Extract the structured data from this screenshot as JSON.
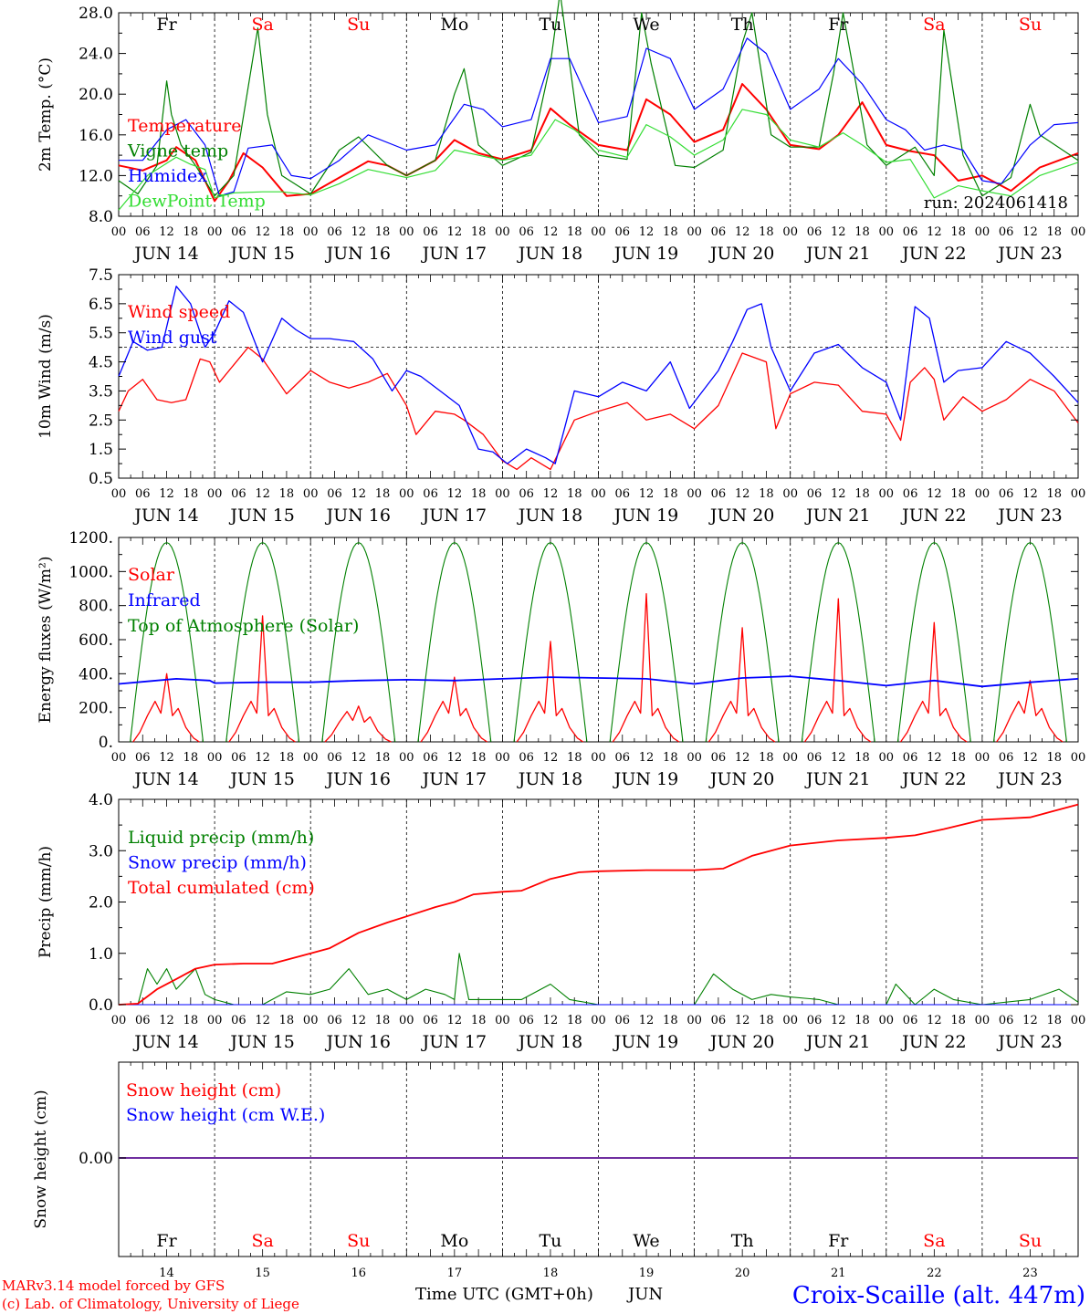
{
  "footer": {
    "model": "MARv3.14 model forced by GFS",
    "copyright": "(c) Lab. of Climatology, University of Liege",
    "station": "Croix-Scaille (alt. 447m)",
    "time_label": "Time UTC (GMT+0h)",
    "month": "JUN"
  },
  "colors": {
    "red": "#ff0000",
    "green": "#008000",
    "blue": "#0000ff",
    "lime": "#33dd33",
    "purple": "#7030a0"
  },
  "chart_data": [
    {
      "type": "line",
      "ylabel": "2m Temp. (°C)",
      "ylim": [
        8,
        28
      ],
      "yticks": [
        "8.0",
        "12.0",
        "16.0",
        "20.0",
        "24.0",
        "28.0"
      ],
      "ytick_values": [
        8,
        12,
        16,
        20,
        24,
        28
      ],
      "run_label": "run: 2024061418",
      "days": [
        "JUN 14",
        "JUN 15",
        "JUN 16",
        "JUN 17",
        "JUN 18",
        "JUN 19",
        "JUN 20",
        "JUN 21",
        "JUN 22",
        "JUN 23"
      ],
      "weekdays": [
        "Fr",
        "Sa",
        "Su",
        "Mo",
        "Tu",
        "We",
        "Th",
        "Fr",
        "Sa",
        "Su"
      ],
      "weekend": [
        false,
        true,
        true,
        false,
        false,
        false,
        false,
        false,
        true,
        true
      ],
      "hour_ticks": [
        "00",
        "06",
        "12",
        "18"
      ],
      "series": [
        {
          "name": "Temperature",
          "color": "#ff0000",
          "x": [
            0,
            0.25,
            0.5,
            0.6,
            0.8,
            1.0,
            1.15,
            1.3,
            1.5,
            1.75,
            2.0,
            2.3,
            2.6,
            2.8,
            3.0,
            3.3,
            3.5,
            3.75,
            4.0,
            4.3,
            4.5,
            4.7,
            5.0,
            5.3,
            5.5,
            5.75,
            6.0,
            6.3,
            6.5,
            6.75,
            7.0,
            7.3,
            7.5,
            7.75,
            8.0,
            8.25,
            8.5,
            8.75,
            9.0,
            9.3,
            9.6,
            10.0
          ],
          "y": [
            13,
            12.5,
            13.5,
            14.8,
            13.5,
            9.5,
            11.5,
            14.2,
            12.8,
            10,
            10.2,
            11.8,
            13.4,
            13,
            12,
            13.5,
            15.5,
            14.2,
            13.6,
            14.5,
            18.6,
            17,
            15,
            14.5,
            19.5,
            18,
            15.3,
            16.5,
            21,
            18.5,
            15,
            14.6,
            16,
            19.2,
            15,
            14.4,
            14,
            11.5,
            12,
            10.5,
            12.8,
            14.2
          ]
        },
        {
          "name": "Vigne temp",
          "color": "#008000",
          "x": [
            0,
            0.2,
            0.4,
            0.5,
            0.55,
            0.65,
            0.8,
            1.0,
            1.2,
            1.45,
            1.55,
            1.7,
            2.0,
            2.3,
            2.5,
            2.8,
            3.0,
            3.3,
            3.5,
            3.6,
            3.75,
            4.0,
            4.3,
            4.5,
            4.6,
            4.8,
            5.0,
            5.3,
            5.45,
            5.55,
            5.8,
            6.0,
            6.3,
            6.5,
            6.6,
            6.8,
            7.0,
            7.3,
            7.45,
            7.55,
            7.8,
            8.0,
            8.3,
            8.5,
            8.6,
            8.8,
            9.0,
            9.3,
            9.5,
            9.6,
            10.0
          ],
          "y": [
            11.5,
            10.2,
            13,
            21.3,
            18,
            15,
            13,
            10,
            12,
            26.5,
            18,
            12,
            10.2,
            14.5,
            15.8,
            13,
            12,
            13.5,
            20,
            22.5,
            15,
            13,
            14.3,
            23,
            30,
            16,
            14,
            13.6,
            28,
            23,
            13,
            12.8,
            14.5,
            25,
            28,
            16,
            14.8,
            14.8,
            22,
            28,
            15,
            13,
            14.8,
            12,
            26.3,
            14,
            10,
            11.8,
            19,
            16,
            13.5
          ]
        },
        {
          "name": "Humidex",
          "color": "#0000ff",
          "x": [
            0,
            0.25,
            0.5,
            0.7,
            0.9,
            1.05,
            1.2,
            1.35,
            1.6,
            1.8,
            2.0,
            2.3,
            2.6,
            3.0,
            3.3,
            3.6,
            3.8,
            4.0,
            4.3,
            4.5,
            4.7,
            5.0,
            5.3,
            5.5,
            5.75,
            6.0,
            6.3,
            6.55,
            6.75,
            7.0,
            7.3,
            7.5,
            7.75,
            8.0,
            8.2,
            8.4,
            8.6,
            8.8,
            9.0,
            9.2,
            9.5,
            9.75,
            10.0
          ],
          "y": [
            13.5,
            13.5,
            16.5,
            17.5,
            15,
            10,
            10.4,
            14.7,
            15,
            12,
            11.7,
            13.5,
            16,
            14.5,
            15,
            19,
            18.5,
            16.8,
            17.5,
            23.5,
            23.5,
            17.2,
            17.8,
            24.5,
            23.5,
            18.5,
            20.5,
            25.5,
            24,
            18.5,
            20.5,
            23.5,
            21,
            17.5,
            16.5,
            14.5,
            15,
            14.5,
            11.5,
            11.2,
            15,
            17,
            17.2
          ]
        },
        {
          "name": "DewPoint Temp",
          "color": "#33dd33",
          "x": [
            0,
            0.3,
            0.6,
            0.75,
            0.9,
            1.0,
            1.2,
            1.5,
            1.7,
            2.0,
            2.3,
            2.6,
            3.0,
            3.3,
            3.5,
            3.75,
            4.0,
            4.3,
            4.55,
            4.75,
            5.0,
            5.3,
            5.5,
            5.75,
            6.0,
            6.3,
            6.5,
            6.75,
            7.0,
            7.3,
            7.55,
            7.75,
            8.0,
            8.25,
            8.5,
            8.75,
            9.0,
            9.3,
            9.6,
            10.0
          ],
          "y": [
            8.6,
            12,
            13.8,
            13.1,
            12.6,
            9.8,
            10.3,
            10.4,
            10.4,
            10.1,
            11.2,
            12.6,
            11.8,
            12.5,
            14.5,
            14,
            13.5,
            14,
            17.5,
            16.5,
            14.5,
            13.8,
            17,
            15.8,
            14,
            15.5,
            18.5,
            18,
            15.5,
            14.8,
            16.2,
            15,
            13.3,
            13.6,
            9.8,
            11,
            10.5,
            10,
            12,
            13.3
          ]
        }
      ]
    },
    {
      "type": "line",
      "ylabel": "10m Wind (m/s)",
      "ylim": [
        0.5,
        7.5
      ],
      "yticks": [
        "0.5",
        "1.5",
        "2.5",
        "3.5",
        "4.5",
        "5.5",
        "6.5",
        "7.5"
      ],
      "ytick_values": [
        0.5,
        1.5,
        2.5,
        3.5,
        4.5,
        5.5,
        6.5,
        7.5
      ],
      "reference_line": 5,
      "series": [
        {
          "name": "Wind speed",
          "color": "#ff0000",
          "x": [
            0,
            0.1,
            0.25,
            0.4,
            0.55,
            0.7,
            0.85,
            0.95,
            1.05,
            1.2,
            1.35,
            1.5,
            1.75,
            2.0,
            2.2,
            2.4,
            2.6,
            2.8,
            3.0,
            3.1,
            3.3,
            3.5,
            3.6,
            3.8,
            4.0,
            4.15,
            4.3,
            4.5,
            4.75,
            5.0,
            5.3,
            5.5,
            5.75,
            6.0,
            6.25,
            6.5,
            6.75,
            6.85,
            7.0,
            7.25,
            7.5,
            7.75,
            8.0,
            8.15,
            8.25,
            8.4,
            8.5,
            8.6,
            8.8,
            9.0,
            9.25,
            9.5,
            9.75,
            10.0
          ],
          "y": [
            2.8,
            3.5,
            3.9,
            3.2,
            3.1,
            3.2,
            4.6,
            4.5,
            3.8,
            4.4,
            5.0,
            4.6,
            3.4,
            4.2,
            3.8,
            3.6,
            3.8,
            4.1,
            3.0,
            2.0,
            2.8,
            2.7,
            2.5,
            2.0,
            1.1,
            0.8,
            1.2,
            0.8,
            2.5,
            2.8,
            3.1,
            2.5,
            2.7,
            2.2,
            3.0,
            4.8,
            4.5,
            2.2,
            3.4,
            3.8,
            3.7,
            2.8,
            2.7,
            1.8,
            3.8,
            4.3,
            3.9,
            2.5,
            3.3,
            2.8,
            3.2,
            3.9,
            3.5,
            2.4
          ]
        },
        {
          "name": "Wind gust",
          "color": "#0000ff",
          "x": [
            0,
            0.15,
            0.3,
            0.45,
            0.6,
            0.75,
            0.9,
            1.0,
            1.15,
            1.3,
            1.5,
            1.7,
            1.85,
            2.0,
            2.2,
            2.45,
            2.65,
            2.85,
            3.0,
            3.15,
            3.35,
            3.55,
            3.75,
            3.9,
            4.05,
            4.25,
            4.45,
            4.55,
            4.75,
            5.0,
            5.25,
            5.5,
            5.75,
            5.95,
            6.25,
            6.4,
            6.55,
            6.7,
            6.8,
            7.0,
            7.25,
            7.5,
            7.75,
            8.0,
            8.15,
            8.3,
            8.45,
            8.6,
            8.75,
            9.0,
            9.25,
            9.5,
            9.75,
            10.0
          ],
          "y": [
            4.0,
            5.2,
            4.9,
            5.0,
            7.1,
            6.5,
            5.0,
            5.5,
            6.6,
            6.2,
            4.5,
            6.0,
            5.6,
            5.3,
            5.3,
            5.2,
            4.6,
            3.5,
            4.2,
            4.0,
            3.5,
            3.0,
            1.5,
            1.4,
            1.0,
            1.5,
            1.2,
            1.0,
            3.5,
            3.3,
            3.8,
            3.5,
            4.5,
            2.9,
            4.2,
            5.2,
            6.3,
            6.5,
            5.0,
            3.5,
            4.8,
            5.1,
            4.3,
            3.8,
            2.5,
            6.4,
            6.0,
            3.8,
            4.2,
            4.3,
            5.2,
            4.8,
            4.0,
            3.1
          ]
        }
      ]
    },
    {
      "type": "line",
      "ylabel": "Energy fluxes (W/m²)",
      "ylim": [
        0,
        1200
      ],
      "yticks": [
        "0.",
        "200.",
        "400.",
        "600.",
        "800.",
        "1000.",
        "1200."
      ],
      "ytick_values": [
        0,
        200,
        400,
        600,
        800,
        1000,
        1200
      ],
      "series": [
        {
          "name": "Solar",
          "color": "#ff0000",
          "daily_peaks": [
            [
              0.08,
              0.22,
              0.3,
              0.45,
              0.65,
              0.72
            ],
            [
              260,
              230,
              410,
              50,
              0,
              0
            ]
          ],
          "peaks": [
            400,
            740,
            210,
            380,
            590,
            870,
            670,
            840,
            700,
            360
          ]
        },
        {
          "name": "Infrared",
          "color": "#0000ff",
          "x": [
            0,
            0.3,
            0.6,
            0.95,
            1.0,
            1.5,
            2.0,
            2.5,
            3.0,
            3.5,
            4.0,
            4.5,
            5.0,
            5.5,
            6.0,
            6.5,
            7.0,
            7.5,
            8.0,
            8.5,
            9.0,
            9.5,
            10.0
          ],
          "y": [
            340,
            355,
            370,
            360,
            345,
            350,
            350,
            360,
            365,
            360,
            370,
            380,
            375,
            370,
            340,
            375,
            385,
            360,
            330,
            360,
            325,
            350,
            370
          ]
        },
        {
          "name": "Top of Atmosphere (Solar)",
          "color": "#008000",
          "peak": 1170
        }
      ]
    },
    {
      "type": "line",
      "ylabel": "Precip (mm/h)",
      "ylim": [
        0,
        4
      ],
      "yticks": [
        "0.0",
        "1.0",
        "2.0",
        "3.0",
        "4.0"
      ],
      "ytick_values": [
        0,
        1,
        2,
        3,
        4
      ],
      "series": [
        {
          "name": "Liquid precip (mm/h)",
          "color": "#008000",
          "x": [
            0,
            0.2,
            0.3,
            0.4,
            0.5,
            0.6,
            0.8,
            0.9,
            1.0,
            1.2,
            1.5,
            1.75,
            2.0,
            2.2,
            2.4,
            2.6,
            2.8,
            3.0,
            3.2,
            3.4,
            3.5,
            3.55,
            3.65,
            4.0,
            4.2,
            4.5,
            4.7,
            5.0,
            5.5,
            6.0,
            6.2,
            6.4,
            6.6,
            6.8,
            7.0,
            7.3,
            7.5,
            8.0,
            8.1,
            8.3,
            8.5,
            8.7,
            9.0,
            9.5,
            9.8,
            10.0
          ],
          "y": [
            0,
            0,
            0.7,
            0.4,
            0.7,
            0.3,
            0.7,
            0.2,
            0.1,
            0,
            0,
            0.25,
            0.2,
            0.3,
            0.7,
            0.2,
            0.3,
            0.1,
            0.3,
            0.2,
            0.1,
            1.0,
            0.1,
            0.1,
            0.1,
            0.4,
            0.1,
            0,
            0,
            0,
            0.6,
            0.3,
            0.1,
            0.2,
            0.15,
            0.1,
            0,
            0,
            0.4,
            0,
            0.3,
            0.1,
            0,
            0.1,
            0.3,
            0.05
          ]
        },
        {
          "name": "Snow precip (mm/h)",
          "color": "#0000ff",
          "x": [
            0,
            10
          ],
          "y": [
            0,
            0
          ]
        },
        {
          "name": "Total cumulated (cm)",
          "color": "#ff0000",
          "x": [
            0,
            0.2,
            0.4,
            0.6,
            0.8,
            1.0,
            1.3,
            1.6,
            1.9,
            2.2,
            2.5,
            2.8,
            3.0,
            3.3,
            3.5,
            3.7,
            4.0,
            4.2,
            4.5,
            4.8,
            5.0,
            5.5,
            6.0,
            6.3,
            6.6,
            7.0,
            7.5,
            8.0,
            8.3,
            8.6,
            9.0,
            9.5,
            10.0
          ],
          "y": [
            0,
            0.02,
            0.3,
            0.5,
            0.7,
            0.78,
            0.8,
            0.8,
            0.95,
            1.1,
            1.4,
            1.6,
            1.72,
            1.9,
            2.0,
            2.15,
            2.2,
            2.22,
            2.45,
            2.58,
            2.6,
            2.62,
            2.62,
            2.65,
            2.9,
            3.1,
            3.2,
            3.25,
            3.3,
            3.42,
            3.6,
            3.65,
            3.9
          ]
        }
      ]
    },
    {
      "type": "line",
      "ylabel": "Snow height (cm)",
      "yticks": [
        "0.00"
      ],
      "ytick_values": [
        0
      ],
      "series": [
        {
          "name": "Snow height (cm)",
          "color": "#ff0000",
          "x": [
            0,
            10
          ],
          "y": [
            0,
            0
          ]
        },
        {
          "name": "Snow height (cm W.E.)",
          "color": "#0000ff",
          "x": [
            0,
            10
          ],
          "y": [
            0,
            0
          ]
        }
      ],
      "weekdays": [
        "Fr",
        "Sa",
        "Su",
        "Mo",
        "Tu",
        "We",
        "Th",
        "Fr",
        "Sa",
        "Su"
      ],
      "day_numbers": [
        "14",
        "15",
        "16",
        "17",
        "18",
        "19",
        "20",
        "21",
        "22",
        "23"
      ]
    }
  ]
}
